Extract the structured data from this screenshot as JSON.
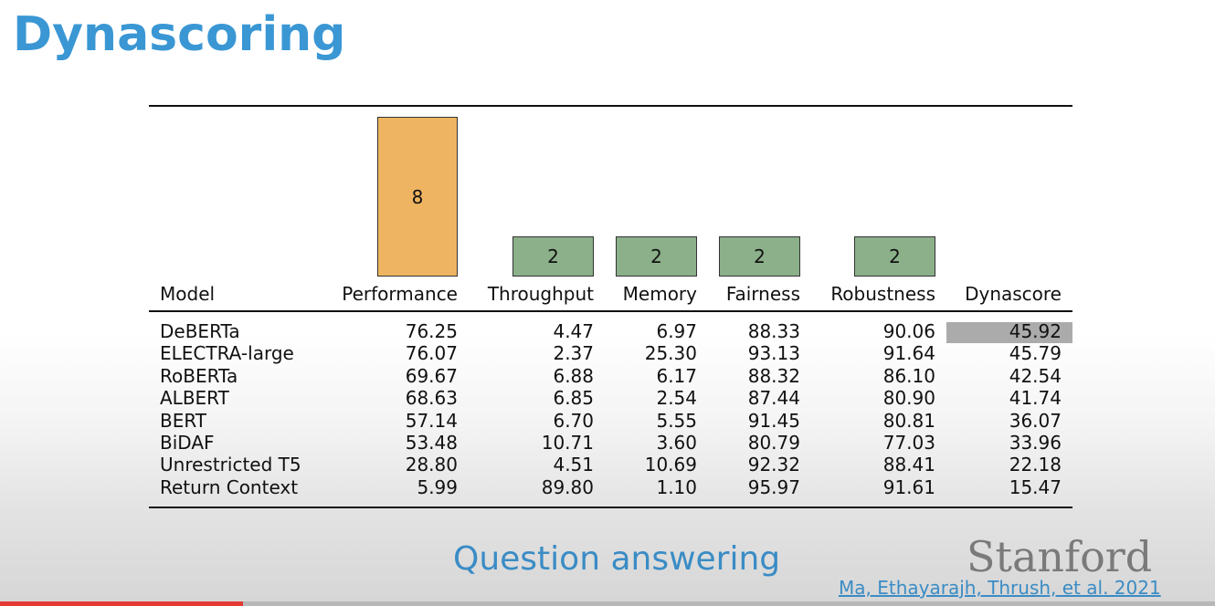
{
  "slide": {
    "title": "Dynascoring",
    "subtitle": "Question answering",
    "logo": "Stanford",
    "citation": "Ma, Ethayarajh, Thrush, et al. 2021"
  },
  "table": {
    "columns": [
      "Model",
      "Performance",
      "Throughput",
      "Memory",
      "Fairness",
      "Robustness",
      "Dynascore"
    ],
    "weights": [
      "8",
      "2",
      "2",
      "2",
      "2"
    ],
    "rows": [
      [
        "DeBERTa",
        "76.25",
        "4.47",
        "6.97",
        "88.33",
        "90.06",
        "45.92"
      ],
      [
        "ELECTRA-large",
        "76.07",
        "2.37",
        "25.30",
        "93.13",
        "91.64",
        "45.79"
      ],
      [
        "RoBERTa",
        "69.67",
        "6.88",
        "6.17",
        "88.32",
        "86.10",
        "42.54"
      ],
      [
        "ALBERT",
        "68.63",
        "6.85",
        "2.54",
        "87.44",
        "80.90",
        "41.74"
      ],
      [
        "BERT",
        "57.14",
        "6.70",
        "5.55",
        "91.45",
        "80.81",
        "36.07"
      ],
      [
        "BiDAF",
        "53.48",
        "10.71",
        "3.60",
        "80.79",
        "77.03",
        "33.96"
      ],
      [
        "Unrestricted T5",
        "28.80",
        "4.51",
        "10.69",
        "92.32",
        "88.41",
        "22.18"
      ],
      [
        "Return Context",
        "5.99",
        "89.80",
        "1.10",
        "95.97",
        "91.61",
        "15.47"
      ]
    ]
  },
  "video_progress": 0.2,
  "colors": {
    "title": "#3a97d4",
    "performance_weight": "#efb461",
    "other_weight": "#8bb08a",
    "highlight": "#ababab",
    "progress": "#e53935"
  }
}
